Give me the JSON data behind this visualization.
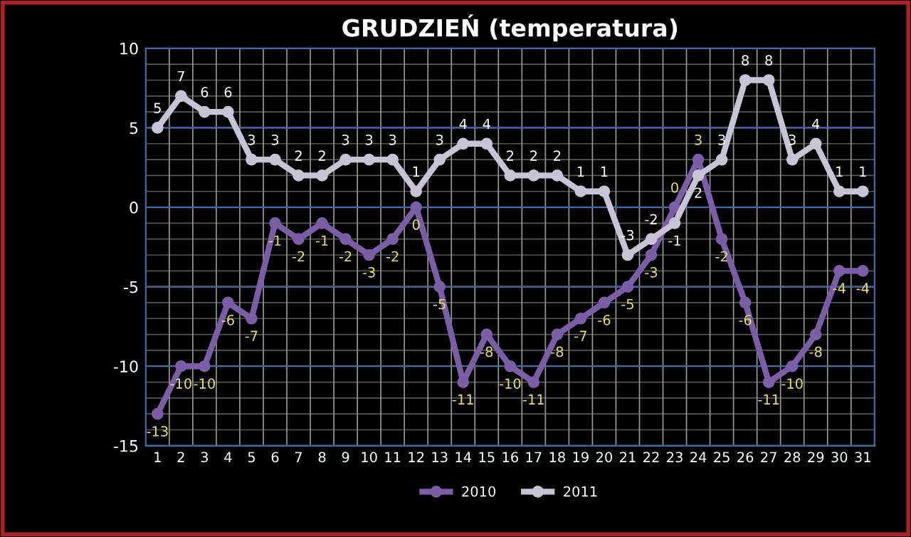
{
  "chart_data": {
    "type": "line",
    "title": "GRUDZIEŃ (temperatura)",
    "categories": [
      "1",
      "2",
      "3",
      "4",
      "5",
      "6",
      "7",
      "8",
      "9",
      "10",
      "11",
      "12",
      "13",
      "14",
      "15",
      "16",
      "17",
      "18",
      "19",
      "20",
      "21",
      "22",
      "23",
      "24",
      "25",
      "26",
      "27",
      "28",
      "29",
      "30",
      "31"
    ],
    "series": [
      {
        "name": "2010",
        "color": "#7b5ea7",
        "values": [
          -13,
          -10,
          -10,
          -6,
          -7,
          -1,
          -2,
          -1,
          -2,
          -3,
          -2,
          0,
          -5,
          -11,
          -8,
          -10,
          -11,
          -8,
          -7,
          -6,
          -5,
          -3,
          0,
          3,
          -2,
          -6,
          -11,
          -10,
          -8,
          -4,
          -4
        ]
      },
      {
        "name": "2011",
        "color": "#c9c3d6",
        "values": [
          5,
          7,
          6,
          6,
          3,
          3,
          2,
          2,
          3,
          3,
          3,
          1,
          3,
          4,
          4,
          2,
          2,
          2,
          1,
          1,
          -3,
          -2,
          -1,
          2,
          3,
          8,
          8,
          3,
          4,
          1,
          1
        ]
      }
    ],
    "ylim": [
      -15,
      10
    ],
    "yticks": [
      -15,
      -10,
      -5,
      0,
      5,
      10
    ],
    "grid": true,
    "legend": "bottom",
    "marker": "circle",
    "line_style": "solid",
    "data_labels": true
  }
}
